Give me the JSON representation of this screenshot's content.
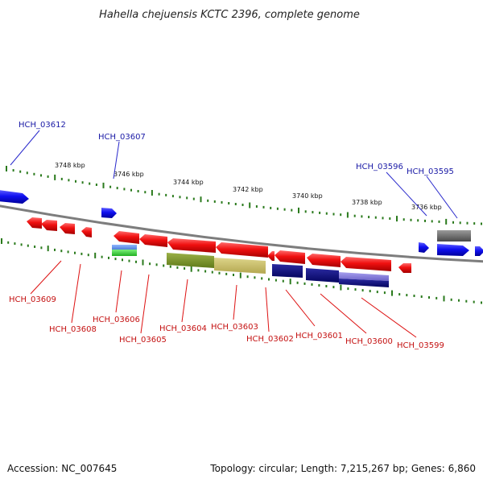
{
  "title": "Hahella chejuensis KCTC 2396, complete genome",
  "footer": {
    "accession": "Accession: NC_007645",
    "summary": "Topology: circular; Length: 7,215,267 bp; Genes: 6,860"
  },
  "scale_labels": [
    "3748 kbp",
    "3746 kbp",
    "3744 kbp",
    "3742 kbp",
    "3740 kbp",
    "3738 kbp",
    "3736 kbp"
  ],
  "upper_gene_labels": [
    "HCH_03612",
    "HCH_03607",
    "HCH_03596",
    "HCH_03595"
  ],
  "lower_gene_labels": [
    "HCH_03609",
    "HCH_03608",
    "HCH_03606",
    "HCH_03605",
    "HCH_03604",
    "HCH_03603",
    "HCH_03602",
    "HCH_03601",
    "HCH_03600",
    "HCH_03599"
  ],
  "colors": {
    "forward_strand": "#1a1aff",
    "reverse_strand": "#ee1111",
    "ticks": "#2a7a1c",
    "backbone": "#7d7d7d"
  }
}
